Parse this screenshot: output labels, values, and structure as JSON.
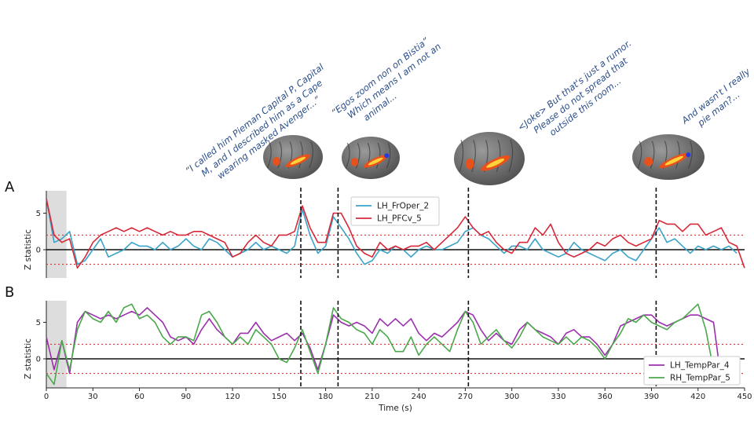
{
  "panels": {
    "a_letter": "A",
    "b_letter": "B"
  },
  "annotations": [
    {
      "line1": "“I called him Pieman Capital P, Capital",
      "line2": "M, and I described him as a Cape",
      "line3": "wearing masked Avenger...”"
    },
    {
      "line1": "“Egos zoom non on Bistia”",
      "line2": "Which means I am not an",
      "line3": "animal..."
    },
    {
      "line1": "<Joke> But that's just a rumor.",
      "line2": "Please do not spread that",
      "line3": "outside this room..."
    },
    {
      "line1": "And wasn't I really",
      "line2": "pie man?...",
      "line3": ""
    }
  ],
  "colors": {
    "LH_FrOper_2": "#3ba3c8",
    "LH_PFCv_5": "#d62839",
    "LH_TempPar_4": "#9b2fae",
    "RH_TempPar_5": "#4aa84a",
    "threshold": "#e03030",
    "event_line": "#111111",
    "shade": "#d9d9d9"
  },
  "chart_data": [
    {
      "type": "line",
      "panel": "A",
      "ylabel": "Z statistic",
      "xlim": [
        0,
        450
      ],
      "ylim": [
        -4,
        8
      ],
      "yticks": [
        0,
        5
      ],
      "threshold_lines": [
        2,
        -2
      ],
      "zero_line": 0,
      "event_times": [
        164,
        188,
        272,
        393
      ],
      "shaded_interval": [
        0,
        13
      ],
      "legend_position": "upper-center",
      "x": [
        0,
        5,
        10,
        15,
        20,
        25,
        30,
        35,
        40,
        45,
        50,
        55,
        60,
        65,
        70,
        75,
        80,
        85,
        90,
        95,
        100,
        105,
        110,
        115,
        120,
        125,
        130,
        135,
        140,
        145,
        150,
        155,
        160,
        165,
        170,
        175,
        180,
        185,
        190,
        195,
        200,
        205,
        210,
        215,
        220,
        225,
        230,
        235,
        240,
        245,
        250,
        255,
        260,
        265,
        270,
        275,
        280,
        285,
        290,
        295,
        300,
        305,
        310,
        315,
        320,
        325,
        330,
        335,
        340,
        345,
        350,
        355,
        360,
        365,
        370,
        375,
        380,
        385,
        390,
        395,
        400,
        405,
        410,
        415,
        420,
        425,
        430,
        435,
        440,
        445,
        450
      ],
      "series": [
        {
          "name": "LH_FrOper_2",
          "values": [
            7,
            1,
            1.5,
            2.5,
            -2,
            -1.5,
            0,
            1.5,
            -1,
            -0.5,
            0,
            1,
            0.5,
            0.5,
            0,
            1,
            0,
            0.5,
            1.5,
            0.5,
            0,
            1.5,
            1,
            0,
            -1,
            -0.5,
            0,
            1,
            0,
            0.5,
            0,
            -0.5,
            0.5,
            5.5,
            2,
            -0.5,
            0.5,
            4.5,
            3,
            1.5,
            -0.5,
            -2,
            -1.5,
            0,
            -0.5,
            0.5,
            0,
            -1,
            0,
            0.5,
            0,
            0,
            0.5,
            1,
            2.5,
            3,
            2,
            1.5,
            0.5,
            -0.5,
            0.5,
            0.5,
            0,
            1.5,
            0,
            -0.5,
            -1,
            -0.5,
            1,
            0,
            -0.5,
            -1,
            -1.5,
            -0.5,
            0,
            -1,
            -1.5,
            0,
            1.5,
            3,
            1,
            1.5,
            0.5,
            -0.5,
            0.5,
            0,
            0.5,
            0,
            0.5,
            -0.5,
            null
          ]
        },
        {
          "name": "LH_PFCv_5",
          "values": [
            7,
            2,
            1,
            1.5,
            -2.5,
            -1,
            1,
            2,
            2.5,
            3,
            2.5,
            3,
            2.5,
            3,
            2.5,
            2,
            2.5,
            2,
            2,
            2.5,
            2.5,
            2,
            1.5,
            1,
            -1,
            -0.5,
            1,
            2,
            1,
            0.5,
            2,
            2,
            2.5,
            6,
            3,
            1,
            1,
            5,
            5,
            3,
            0.5,
            -0.5,
            -1,
            1,
            0,
            0.5,
            0,
            0.5,
            0.5,
            1,
            0,
            1,
            2,
            3,
            4.5,
            3,
            2,
            2.5,
            1,
            0,
            -0.5,
            1,
            1,
            3,
            2,
            3.5,
            1,
            -0.5,
            -1,
            -0.5,
            0,
            1,
            0.5,
            1.5,
            2,
            1,
            0.5,
            1,
            1.5,
            4,
            3.5,
            3.5,
            2.5,
            3.5,
            3.5,
            2,
            2.5,
            3,
            1,
            0.5,
            -2.5
          ]
        }
      ]
    },
    {
      "type": "line",
      "panel": "B",
      "ylabel": "Z statistic",
      "xlabel": "Time (s)",
      "xlim": [
        0,
        450
      ],
      "xticks": [
        0,
        30,
        60,
        90,
        120,
        150,
        180,
        210,
        240,
        270,
        300,
        330,
        360,
        390,
        420,
        450
      ],
      "ylim": [
        -4,
        8
      ],
      "yticks": [
        0,
        5
      ],
      "threshold_lines": [
        2,
        -2
      ],
      "zero_line": 0,
      "event_times": [
        164,
        188,
        272,
        393
      ],
      "shaded_interval": [
        0,
        13
      ],
      "legend_position": "lower-right",
      "x": [
        0,
        5,
        10,
        15,
        20,
        25,
        30,
        35,
        40,
        45,
        50,
        55,
        60,
        65,
        70,
        75,
        80,
        85,
        90,
        95,
        100,
        105,
        110,
        115,
        120,
        125,
        130,
        135,
        140,
        145,
        150,
        155,
        160,
        165,
        170,
        175,
        180,
        185,
        190,
        195,
        200,
        205,
        210,
        215,
        220,
        225,
        230,
        235,
        240,
        245,
        250,
        255,
        260,
        265,
        270,
        275,
        280,
        285,
        290,
        295,
        300,
        305,
        310,
        315,
        320,
        325,
        330,
        335,
        340,
        345,
        350,
        355,
        360,
        365,
        370,
        375,
        380,
        385,
        390,
        395,
        400,
        405,
        410,
        415,
        420,
        425,
        430,
        435,
        440,
        445,
        450
      ],
      "series": [
        {
          "name": "LH_TempPar_4",
          "values": [
            3,
            -1.5,
            2.5,
            -2,
            5,
            6.5,
            6,
            5.5,
            6,
            5.5,
            6,
            6.5,
            6,
            7,
            6,
            5,
            3,
            2.5,
            3,
            2,
            4,
            5.5,
            4,
            3,
            2,
            3.5,
            3.5,
            5,
            3.5,
            2.5,
            3,
            3.5,
            2.5,
            3.5,
            1.5,
            -1.5,
            2,
            6,
            5,
            4.5,
            5,
            4.5,
            3.5,
            5.5,
            4.5,
            5.5,
            4.5,
            5.5,
            3.5,
            2.5,
            3.5,
            3,
            4,
            5,
            6.5,
            6,
            4,
            2.5,
            3.5,
            2.5,
            2,
            4,
            5,
            4,
            3.5,
            3,
            2,
            3.5,
            4,
            3,
            3,
            2,
            0.5,
            2,
            4.5,
            5,
            5.5,
            6,
            6,
            5,
            4.5,
            5,
            5.5,
            6,
            6,
            5.5,
            5,
            -3,
            null,
            null,
            null
          ]
        },
        {
          "name": "RH_TempPar_5",
          "values": [
            -2,
            -3.5,
            2.5,
            -1.5,
            4,
            6.5,
            5.5,
            5,
            6.5,
            5,
            7,
            7.5,
            5.5,
            6,
            5,
            3,
            2,
            3,
            3,
            2.5,
            6,
            6.5,
            5,
            3,
            2,
            3,
            2,
            4,
            3,
            2,
            0,
            -0.5,
            1.5,
            4,
            1,
            -2,
            2,
            7,
            5.5,
            5,
            4,
            3.5,
            2,
            4,
            3,
            1,
            1,
            3,
            0.5,
            2,
            3,
            2,
            1,
            4,
            6.5,
            5,
            2,
            3,
            4,
            2.5,
            1.5,
            3,
            5,
            4,
            3,
            2.5,
            2,
            3,
            2,
            3,
            2.5,
            1.5,
            0,
            2,
            3.5,
            5.5,
            5,
            6,
            5,
            4.5,
            4,
            5,
            5.5,
            6.5,
            7.5,
            4,
            -1.5,
            -3.5,
            null,
            null,
            null
          ]
        }
      ]
    }
  ]
}
